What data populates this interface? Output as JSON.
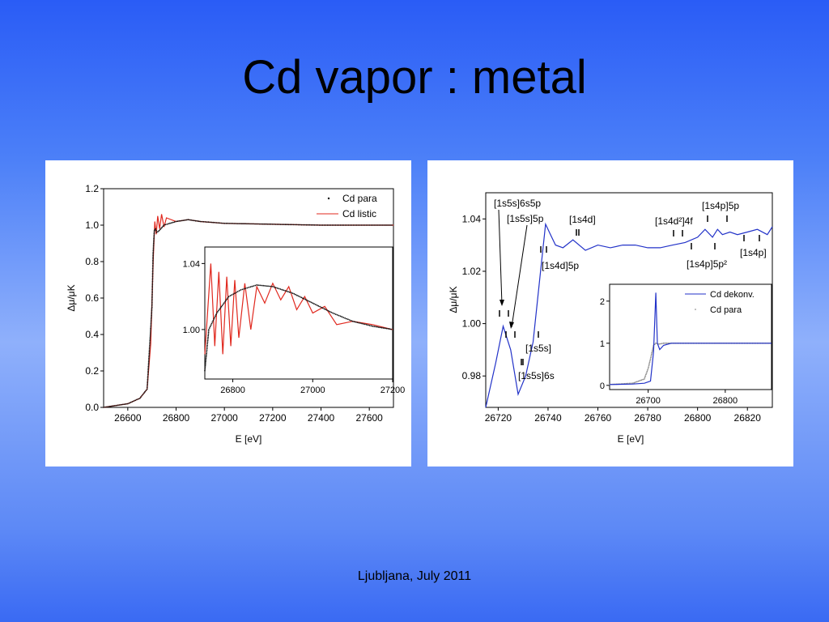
{
  "slide": {
    "title": "Cd vapor : metal",
    "footer": "Ljubljana, July 2011"
  },
  "colors": {
    "metal_line": "#e0281e",
    "vapor_dots": "#111111",
    "deconv_line": "#2232c8"
  },
  "chart_data": [
    {
      "type": "line",
      "xlabel": "E [eV]",
      "ylabel": "Δμ/μK",
      "xlim": [
        26500,
        27700
      ],
      "ylim": [
        0,
        1.2
      ],
      "x_ticks": [
        "26600",
        "26800",
        "27000",
        "27200",
        "27400",
        "27600"
      ],
      "y_ticks": [
        "0.0",
        "0.2",
        "0.4",
        "0.6",
        "0.8",
        "1.0",
        "1.2"
      ],
      "legend": {
        "position": "top-right",
        "entries": [
          "Cd para",
          "Cd listic"
        ]
      },
      "series": [
        {
          "name": "Cd para",
          "style": "dots",
          "x": [
            26500,
            26600,
            26650,
            26680,
            26700,
            26705,
            26710,
            26715,
            26720,
            26730,
            26750,
            26800,
            26850,
            26900,
            27000,
            27200,
            27400,
            27700
          ],
          "y": [
            0.0,
            0.02,
            0.05,
            0.1,
            0.55,
            0.85,
            0.97,
            0.98,
            0.96,
            0.97,
            1.0,
            1.02,
            1.03,
            1.02,
            1.01,
            1.005,
            1.0,
            1.0
          ]
        },
        {
          "name": "Cd listic",
          "style": "line",
          "x": [
            26500,
            26600,
            26650,
            26680,
            26695,
            26705,
            26712,
            26718,
            26724,
            26732,
            26740,
            26750,
            26760,
            26800,
            26850,
            26900,
            27000,
            27200,
            27400,
            27700
          ],
          "y": [
            0.0,
            0.02,
            0.05,
            0.1,
            0.35,
            0.8,
            1.02,
            0.95,
            1.05,
            0.98,
            1.06,
            0.99,
            1.04,
            1.02,
            1.03,
            1.02,
            1.01,
            1.005,
            1.0,
            1.0
          ]
        }
      ],
      "inset": {
        "xlim": [
          26730,
          27200
        ],
        "ylim": [
          0.97,
          1.05
        ],
        "x_ticks": [
          "26800",
          "27000",
          "27200"
        ],
        "y_ticks": [
          "1.00",
          "1.04"
        ],
        "series": [
          {
            "name": "Cd para",
            "style": "dots",
            "x": [
              26730,
              26740,
              26760,
              26790,
              26820,
              26860,
              26900,
              26950,
              27000,
              27050,
              27100,
              27150,
              27200
            ],
            "y": [
              0.975,
              1.0,
              1.01,
              1.02,
              1.024,
              1.027,
              1.026,
              1.022,
              1.016,
              1.01,
              1.005,
              1.002,
              1.0
            ]
          },
          {
            "name": "Cd listic",
            "style": "line",
            "x": [
              26730,
              26745,
              26755,
              26765,
              26775,
              26785,
              26795,
              26805,
              26815,
              26830,
              26845,
              26860,
              26880,
              26900,
              26920,
              26940,
              26960,
              26980,
              27000,
              27030,
              27060,
              27100,
              27150,
              27200
            ],
            "y": [
              0.985,
              1.04,
              0.99,
              1.035,
              0.985,
              1.032,
              0.99,
              1.03,
              0.995,
              1.028,
              1.0,
              1.026,
              1.016,
              1.028,
              1.018,
              1.026,
              1.012,
              1.02,
              1.01,
              1.014,
              1.003,
              1.005,
              1.003,
              1.0
            ]
          }
        ]
      }
    },
    {
      "type": "line",
      "xlabel": "E [eV]",
      "ylabel": "Δμ/μK",
      "xlim": [
        26715,
        26830
      ],
      "ylim": [
        0.968,
        1.05
      ],
      "x_ticks": [
        "26720",
        "26740",
        "26760",
        "26780",
        "26800",
        "26820"
      ],
      "y_ticks": [
        "0.98",
        "1.00",
        "1.02",
        "1.04"
      ],
      "series": [
        {
          "name": "Cd dekonv.",
          "style": "line",
          "x": [
            26715,
            26719,
            26722,
            26725,
            26728,
            26731,
            26734,
            26737,
            26739,
            26741,
            26743,
            26746,
            26750,
            26755,
            26760,
            26765,
            26770,
            26775,
            26780,
            26785,
            26790,
            26795,
            26800,
            26803,
            26806,
            26808,
            26810,
            26813,
            26816,
            26820,
            26824,
            26828,
            26830
          ],
          "y": [
            0.968,
            0.985,
            0.999,
            0.99,
            0.973,
            0.98,
            0.993,
            1.02,
            1.038,
            1.034,
            1.03,
            1.029,
            1.032,
            1.028,
            1.03,
            1.029,
            1.03,
            1.03,
            1.029,
            1.029,
            1.03,
            1.031,
            1.033,
            1.036,
            1.033,
            1.036,
            1.034,
            1.035,
            1.034,
            1.035,
            1.036,
            1.034,
            1.037
          ]
        }
      ],
      "annotations": [
        "[1s5s]6s5p",
        "[1s5s]5p",
        "[1s4d]",
        "[1s4d]5p",
        "[1s5s]",
        "[1s5s]6s",
        "[1s4d²]4f",
        "[1s4p]5p",
        "[1s4p]5p²",
        "[1s4p]"
      ],
      "inset": {
        "xlim": [
          26650,
          26860
        ],
        "ylim": [
          -0.1,
          2.4
        ],
        "x_ticks": [
          "26700",
          "26800"
        ],
        "y_ticks": [
          "0",
          "1",
          "2"
        ],
        "legend": {
          "position": "top-right",
          "entries": [
            "Cd dekonv.",
            "Cd para"
          ]
        },
        "series": [
          {
            "name": "Cd dekonv.",
            "style": "line",
            "x": [
              26650,
              26680,
              26695,
              26703,
              26707,
              26710,
              26712,
              26715,
              26720,
              26730,
              26760,
              26800,
              26860
            ],
            "y": [
              0.02,
              0.03,
              0.05,
              0.1,
              0.8,
              2.2,
              1.0,
              0.85,
              0.95,
              1.0,
              1.0,
              1.0,
              1.0
            ]
          },
          {
            "name": "Cd para",
            "style": "dots",
            "x": [
              26650,
              26680,
              26695,
              26700,
              26704,
              26707,
              26710,
              26714,
              26720,
              26740,
              26800,
              26860
            ],
            "y": [
              0.02,
              0.05,
              0.15,
              0.4,
              0.7,
              0.95,
              1.0,
              0.98,
              1.0,
              1.0,
              1.0,
              1.0
            ]
          }
        ]
      }
    }
  ]
}
